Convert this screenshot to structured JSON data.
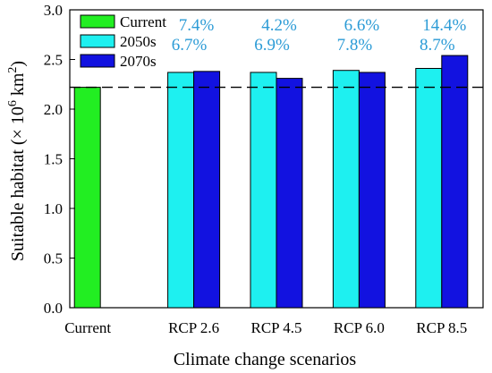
{
  "chart_data": {
    "type": "bar",
    "title": "",
    "xlabel": "Climate change scenarios",
    "ylabel": "Suitable habitat (× 10⁶ km²)",
    "ylabel_parts": {
      "pre": "Suitable habitat (× 10",
      "sup1": "6",
      "mid": " km",
      "sup2": "2",
      "post": ")"
    },
    "ylim": [
      0.0,
      3.0
    ],
    "yticks": [
      "0.0",
      "0.5",
      "1.0",
      "1.5",
      "2.0",
      "2.5",
      "3.0"
    ],
    "categories": [
      "Current",
      "RCP 2.6",
      "RCP 4.5",
      "RCP 6.0",
      "RCP 8.5"
    ],
    "series": [
      {
        "name": "Current",
        "color": "#22ee22",
        "values": [
          2.22,
          null,
          null,
          null,
          null
        ]
      },
      {
        "name": "2050s",
        "color": "#1ef0f0",
        "values": [
          null,
          2.37,
          2.37,
          2.39,
          2.41
        ]
      },
      {
        "name": "2070s",
        "color": "#1212e0",
        "values": [
          null,
          2.38,
          2.31,
          2.37,
          2.54
        ]
      }
    ],
    "reference_line": {
      "value": 2.22,
      "style": "dashed"
    },
    "annotations": {
      "2050s": [
        "6.7%",
        "6.9%",
        "7.8%",
        "8.7%"
      ],
      "2070s": [
        "7.4%",
        "4.2%",
        "6.6%",
        "14.4%"
      ],
      "color": "#2b9bd6"
    },
    "grid": false,
    "legend": "top-left"
  }
}
